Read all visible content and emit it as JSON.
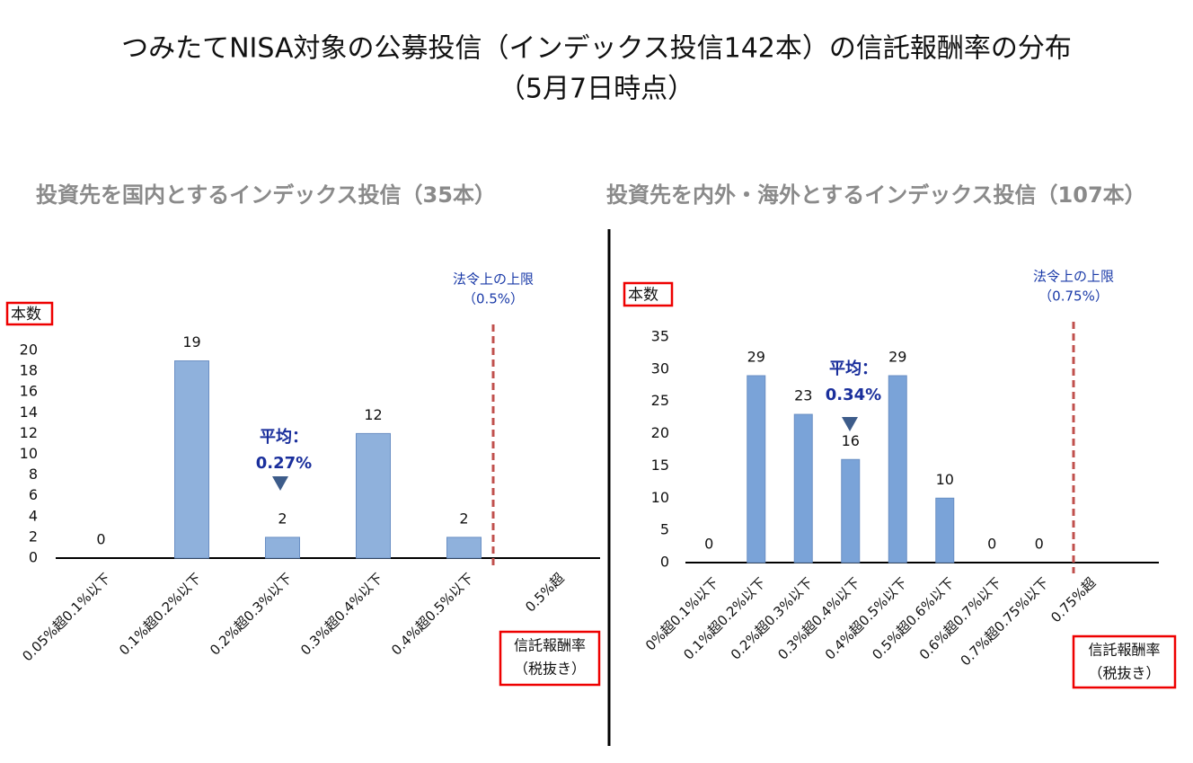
{
  "title": "つみたてNISA対象の公募投信（インデックス投信142本）の信託報酬率の分布",
  "subtitle": "（5月7日時点）",
  "chart_data": [
    {
      "type": "bar",
      "title": "投資先を国内とするインデックス投信（35本）",
      "y_label": "本数",
      "x_label": [
        "信託報酬率",
        "（税抜き）"
      ],
      "limit_annotation": [
        "法令上の上限",
        "（0.5%）"
      ],
      "mean_annotation": [
        "平均：",
        "0.27%"
      ],
      "categories": [
        "0.05%超0.1%以下",
        "0.1%超0.2%以下",
        "0.2%超0.3%以下",
        "0.3%超0.4%以下",
        "0.4%超0.5%以下",
        "0.5%超"
      ],
      "values": [
        0,
        19,
        2,
        12,
        2,
        null
      ],
      "color": "#8fb1dc",
      "ylim": [
        0,
        20
      ],
      "yticks": [
        0,
        2,
        4,
        6,
        8,
        10,
        12,
        14,
        16,
        18,
        20
      ]
    },
    {
      "type": "bar",
      "title": "投資先を内外・海外とするインデックス投信（107本）",
      "y_label": "本数",
      "x_label": [
        "信託報酬率",
        "（税抜き）"
      ],
      "limit_annotation": [
        "法令上の上限",
        "（0.75%）"
      ],
      "mean_annotation": [
        "平均：",
        "0.34%"
      ],
      "categories": [
        "0%超0.1%以下",
        "0.1%超0.2%以下",
        "0.2%超0.3%以下",
        "0.3%超0.4%以下",
        "0.4%超0.5%以下",
        "0.5%超0.6%以下",
        "0.6%超0.7%以下",
        "0.7%超0.75%以下",
        "0.75%超"
      ],
      "values": [
        0,
        29,
        23,
        16,
        29,
        10,
        0,
        0,
        null
      ],
      "color": "#7aa3d8",
      "ylim": [
        0,
        35
      ],
      "yticks": [
        0,
        5,
        10,
        15,
        20,
        25,
        30,
        35
      ]
    }
  ]
}
